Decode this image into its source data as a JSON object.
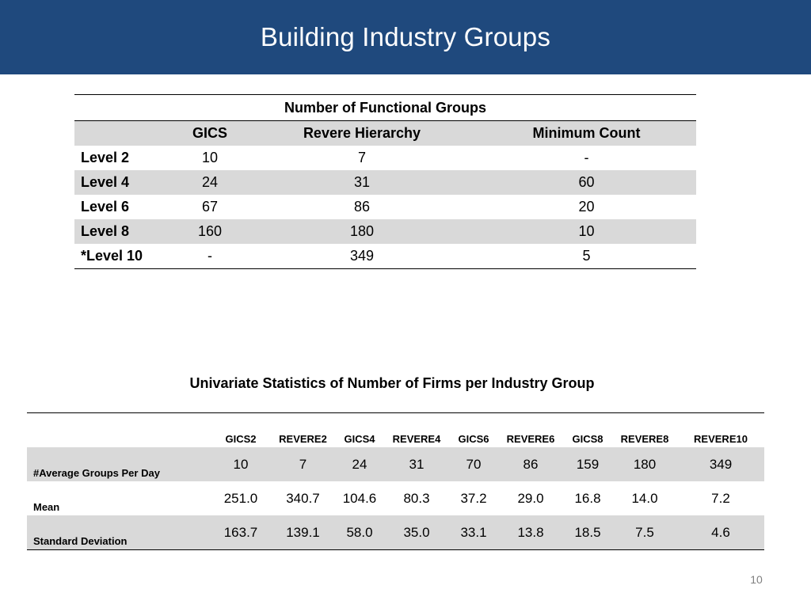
{
  "slide": {
    "title": "Building Industry Groups",
    "page_number": "10"
  },
  "table1": {
    "caption": "Number of Functional Groups",
    "headers": [
      "",
      "GICS",
      "Revere Hierarchy",
      "Minimum Count"
    ],
    "rows": [
      {
        "label": "Level 2",
        "gics": "10",
        "revere": "7",
        "min": "-"
      },
      {
        "label": "Level 4",
        "gics": "24",
        "revere": "31",
        "min": "60"
      },
      {
        "label": "Level 6",
        "gics": "67",
        "revere": "86",
        "min": "20"
      },
      {
        "label": "Level 8",
        "gics": "160",
        "revere": "180",
        "min": "10"
      },
      {
        "label": "*Level 10",
        "gics": "-",
        "revere": "349",
        "min": "5"
      }
    ]
  },
  "table2": {
    "title": "Univariate Statistics of Number of Firms per Industry Group",
    "headers": [
      "",
      "GICS2",
      "REVERE2",
      "GICS4",
      "REVERE4",
      "GICS6",
      "REVERE6",
      "GICS8",
      "REVERE8",
      "REVERE10"
    ],
    "rows": [
      {
        "label": "#Average Groups Per Day",
        "values": [
          "10",
          "7",
          "24",
          "31",
          "70",
          "86",
          "159",
          "180",
          "349"
        ]
      },
      {
        "label": "Mean",
        "values": [
          "251.0",
          "340.7",
          "104.6",
          "80.3",
          "37.2",
          "29.0",
          "16.8",
          "14.0",
          "7.2"
        ]
      },
      {
        "label": "Standard Deviation",
        "values": [
          "163.7",
          "139.1",
          "58.0",
          "35.0",
          "33.1",
          "13.8",
          "18.5",
          "7.5",
          "4.6"
        ]
      }
    ]
  },
  "colors": {
    "header_bg": "#1f497d",
    "row_shade": "#d9d9d9"
  }
}
